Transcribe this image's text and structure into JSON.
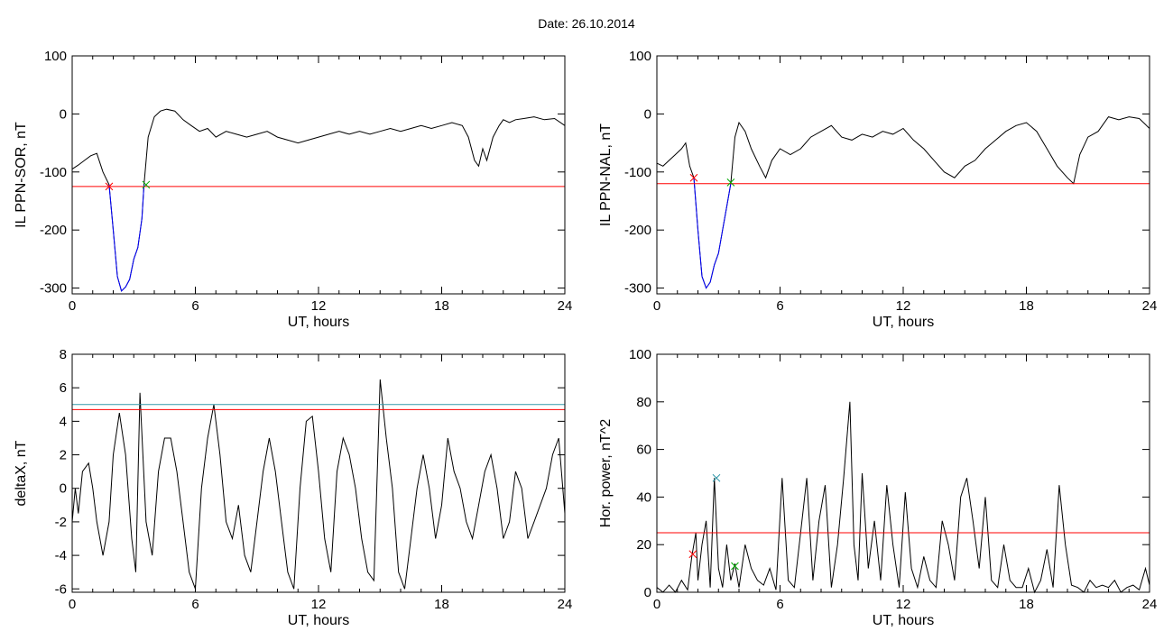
{
  "title": "Date:  26.10.2014",
  "chart_data": [
    {
      "type": "line",
      "xlabel": "UT, hours",
      "ylabel": "IL PPN-SOR, nT",
      "xlim": [
        0,
        24
      ],
      "ylim": [
        -310,
        100
      ],
      "xticks": [
        0,
        6,
        12,
        18,
        24
      ],
      "yticks": [
        100,
        0,
        -100,
        -200,
        -300
      ],
      "series": [
        {
          "color": "#000000",
          "x": [
            0,
            0.3,
            0.6,
            0.9,
            1.2,
            1.5,
            1.8,
            2.0,
            2.2,
            2.4,
            2.6,
            2.8,
            3.0,
            3.2,
            3.4,
            3.5,
            3.7,
            4.0,
            4.3,
            4.6,
            5.0,
            5.4,
            5.8,
            6.2,
            6.6,
            7.0,
            7.5,
            8.0,
            8.5,
            9.0,
            9.5,
            10.0,
            10.5,
            11.0,
            11.5,
            12.0,
            12.5,
            13.0,
            13.5,
            14.0,
            14.5,
            15.0,
            15.5,
            16.0,
            16.5,
            17.0,
            17.5,
            18.0,
            18.5,
            19.0,
            19.3,
            19.6,
            19.8,
            20.0,
            20.2,
            20.5,
            20.8,
            21.0,
            21.3,
            21.6,
            22.0,
            22.5,
            23.0,
            23.5,
            24.0
          ],
          "y": [
            -95,
            -88,
            -80,
            -72,
            -68,
            -100,
            -122,
            -200,
            -280,
            -305,
            -298,
            -285,
            -250,
            -230,
            -180,
            -122,
            -40,
            -5,
            5,
            8,
            5,
            -10,
            -20,
            -30,
            -25,
            -40,
            -30,
            -35,
            -40,
            -35,
            -30,
            -40,
            -45,
            -50,
            -45,
            -40,
            -35,
            -30,
            -35,
            -30,
            -35,
            -30,
            -25,
            -30,
            -25,
            -20,
            -25,
            -20,
            -15,
            -20,
            -40,
            -80,
            -90,
            -60,
            -80,
            -40,
            -20,
            -10,
            -15,
            -10,
            -8,
            -5,
            -10,
            -8,
            -20
          ]
        },
        {
          "color": "#0000ff",
          "x": [
            1.8,
            2.0,
            2.2,
            2.4,
            2.6,
            2.8,
            3.0,
            3.2,
            3.4,
            3.5
          ],
          "y": [
            -122,
            -200,
            -280,
            -305,
            -298,
            -285,
            -250,
            -230,
            -180,
            -122
          ]
        },
        {
          "color": "#ff0000",
          "x": [
            0,
            24
          ],
          "y": [
            -125,
            -125
          ]
        }
      ],
      "markers": [
        {
          "x": 1.8,
          "y": -125,
          "color": "#ff0000"
        },
        {
          "x": 3.6,
          "y": -122,
          "color": "#00aa00"
        }
      ]
    },
    {
      "type": "line",
      "xlabel": "UT, hours",
      "ylabel": "IL PPN-NAL, nT",
      "xlim": [
        0,
        24
      ],
      "ylim": [
        -310,
        100
      ],
      "xticks": [
        0,
        6,
        12,
        18,
        24
      ],
      "yticks": [
        100,
        0,
        -100,
        -200,
        -300
      ],
      "series": [
        {
          "color": "#000000",
          "x": [
            0,
            0.3,
            0.6,
            0.9,
            1.2,
            1.4,
            1.6,
            1.8,
            2.0,
            2.2,
            2.4,
            2.6,
            2.8,
            3.0,
            3.2,
            3.4,
            3.6,
            3.8,
            4.0,
            4.3,
            4.6,
            5.0,
            5.3,
            5.6,
            6.0,
            6.5,
            7.0,
            7.5,
            8.0,
            8.5,
            9.0,
            9.5,
            10.0,
            10.5,
            11.0,
            11.5,
            12.0,
            12.5,
            13.0,
            13.5,
            14.0,
            14.5,
            15.0,
            15.5,
            16.0,
            16.5,
            17.0,
            17.5,
            18.0,
            18.5,
            19.0,
            19.5,
            20.0,
            20.3,
            20.6,
            21.0,
            21.5,
            22.0,
            22.5,
            23.0,
            23.5,
            24.0
          ],
          "y": [
            -85,
            -90,
            -80,
            -70,
            -60,
            -50,
            -90,
            -110,
            -200,
            -280,
            -300,
            -290,
            -260,
            -240,
            -200,
            -160,
            -120,
            -40,
            -15,
            -30,
            -60,
            -90,
            -110,
            -80,
            -60,
            -70,
            -60,
            -40,
            -30,
            -20,
            -40,
            -45,
            -35,
            -40,
            -30,
            -35,
            -25,
            -45,
            -60,
            -80,
            -100,
            -110,
            -90,
            -80,
            -60,
            -45,
            -30,
            -20,
            -15,
            -30,
            -60,
            -90,
            -110,
            -120,
            -70,
            -40,
            -30,
            -5,
            -10,
            -5,
            -8,
            -25
          ]
        },
        {
          "color": "#0000ff",
          "x": [
            1.8,
            2.0,
            2.2,
            2.4,
            2.6,
            2.8,
            3.0,
            3.2,
            3.4,
            3.6
          ],
          "y": [
            -110,
            -200,
            -280,
            -300,
            -290,
            -260,
            -240,
            -200,
            -160,
            -120
          ]
        },
        {
          "color": "#ff0000",
          "x": [
            0,
            24
          ],
          "y": [
            -120,
            -120
          ]
        }
      ],
      "markers": [
        {
          "x": 1.8,
          "y": -110,
          "color": "#ff0000"
        },
        {
          "x": 3.6,
          "y": -118,
          "color": "#00aa00"
        }
      ]
    },
    {
      "type": "line",
      "xlabel": "UT, hours",
      "ylabel": "deltaX, nT",
      "xlim": [
        0,
        24
      ],
      "ylim": [
        -6.2,
        8
      ],
      "xticks": [
        0,
        6,
        12,
        18,
        24
      ],
      "yticks": [
        8,
        6,
        4,
        2,
        0,
        -2,
        -4,
        -6
      ],
      "series": [
        {
          "color": "#000000",
          "x": [
            0,
            0.15,
            0.3,
            0.5,
            0.8,
            1.0,
            1.2,
            1.5,
            1.8,
            2.0,
            2.3,
            2.6,
            2.9,
            3.1,
            3.3,
            3.6,
            3.9,
            4.2,
            4.5,
            4.8,
            5.1,
            5.4,
            5.7,
            6.0,
            6.3,
            6.6,
            6.9,
            7.2,
            7.5,
            7.8,
            8.1,
            8.4,
            8.7,
            9.0,
            9.3,
            9.6,
            9.9,
            10.2,
            10.5,
            10.8,
            11.1,
            11.4,
            11.7,
            12.0,
            12.3,
            12.6,
            12.9,
            13.2,
            13.5,
            13.8,
            14.1,
            14.4,
            14.7,
            15.0,
            15.3,
            15.6,
            15.9,
            16.2,
            16.5,
            16.8,
            17.1,
            17.4,
            17.7,
            18.0,
            18.3,
            18.6,
            18.9,
            19.2,
            19.5,
            19.8,
            20.1,
            20.4,
            20.7,
            21.0,
            21.3,
            21.6,
            21.9,
            22.2,
            22.5,
            22.8,
            23.1,
            23.4,
            23.7,
            24.0
          ],
          "y": [
            -2,
            0,
            -1.5,
            1,
            1.5,
            0,
            -2,
            -4,
            -2,
            2,
            4.5,
            2,
            -3,
            -5,
            5.7,
            -2,
            -4,
            1,
            3,
            3,
            1,
            -2,
            -5,
            -6,
            0,
            3,
            5,
            2,
            -2,
            -3,
            -1,
            -4,
            -5,
            -2,
            1,
            3,
            1,
            -2,
            -5,
            -6,
            0,
            4,
            4.3,
            1,
            -3,
            -5,
            1,
            3,
            2,
            0,
            -3,
            -5,
            -5.5,
            6.5,
            3,
            0,
            -5,
            -6,
            -3,
            0,
            2,
            0,
            -3,
            -1,
            3,
            1,
            0,
            -2,
            -3,
            -1,
            1,
            2,
            0,
            -3,
            -2,
            1,
            0,
            -3,
            -2,
            -1,
            0,
            2,
            3,
            -1.5
          ]
        },
        {
          "color": "#3399aa",
          "x": [
            0,
            24
          ],
          "y": [
            5,
            5
          ]
        },
        {
          "color": "#ff0000",
          "x": [
            0,
            24
          ],
          "y": [
            4.7,
            4.7
          ]
        }
      ],
      "markers": []
    },
    {
      "type": "line",
      "xlabel": "UT, hours",
      "ylabel": "Hor. power, nT^2",
      "xlim": [
        0,
        24
      ],
      "ylim": [
        0,
        100
      ],
      "xticks": [
        0,
        6,
        12,
        18,
        24
      ],
      "yticks": [
        100,
        80,
        60,
        40,
        20,
        0
      ],
      "series": [
        {
          "color": "#000000",
          "x": [
            0,
            0.3,
            0.6,
            0.9,
            1.2,
            1.5,
            1.7,
            1.9,
            2.0,
            2.2,
            2.4,
            2.6,
            2.8,
            3.0,
            3.2,
            3.4,
            3.6,
            3.8,
            4.0,
            4.3,
            4.6,
            4.9,
            5.2,
            5.5,
            5.8,
            6.1,
            6.4,
            6.7,
            7.0,
            7.3,
            7.6,
            7.9,
            8.2,
            8.5,
            8.8,
            9.1,
            9.4,
            9.6,
            9.8,
            10.0,
            10.3,
            10.6,
            10.9,
            11.2,
            11.5,
            11.8,
            12.1,
            12.4,
            12.7,
            13.0,
            13.3,
            13.6,
            13.9,
            14.2,
            14.5,
            14.8,
            15.1,
            15.4,
            15.7,
            16.0,
            16.3,
            16.6,
            16.9,
            17.2,
            17.5,
            17.8,
            18.1,
            18.4,
            18.7,
            19.0,
            19.3,
            19.6,
            19.9,
            20.2,
            20.5,
            20.8,
            21.1,
            21.4,
            21.7,
            22.0,
            22.3,
            22.6,
            22.9,
            23.2,
            23.5,
            23.8,
            24.0
          ],
          "y": [
            2,
            0,
            3,
            0,
            5,
            1,
            15,
            25,
            5,
            20,
            30,
            2,
            48,
            10,
            2,
            20,
            5,
            12,
            2,
            20,
            10,
            5,
            3,
            10,
            1,
            48,
            5,
            2,
            25,
            48,
            5,
            30,
            45,
            2,
            20,
            48,
            80,
            20,
            5,
            50,
            10,
            30,
            5,
            45,
            20,
            2,
            42,
            10,
            2,
            15,
            5,
            2,
            30,
            20,
            5,
            40,
            48,
            30,
            10,
            40,
            5,
            2,
            20,
            5,
            2,
            2,
            10,
            0,
            5,
            18,
            2,
            45,
            20,
            3,
            2,
            0,
            5,
            2,
            3,
            2,
            5,
            0,
            2,
            3,
            1,
            10,
            3
          ]
        },
        {
          "color": "#ff0000",
          "x": [
            0,
            24
          ],
          "y": [
            25,
            25
          ]
        }
      ],
      "markers": [
        {
          "x": 1.75,
          "y": 16,
          "color": "#ff0000"
        },
        {
          "x": 2.9,
          "y": 48,
          "color": "#3399aa"
        },
        {
          "x": 3.8,
          "y": 11,
          "color": "#00aa00"
        }
      ]
    }
  ]
}
